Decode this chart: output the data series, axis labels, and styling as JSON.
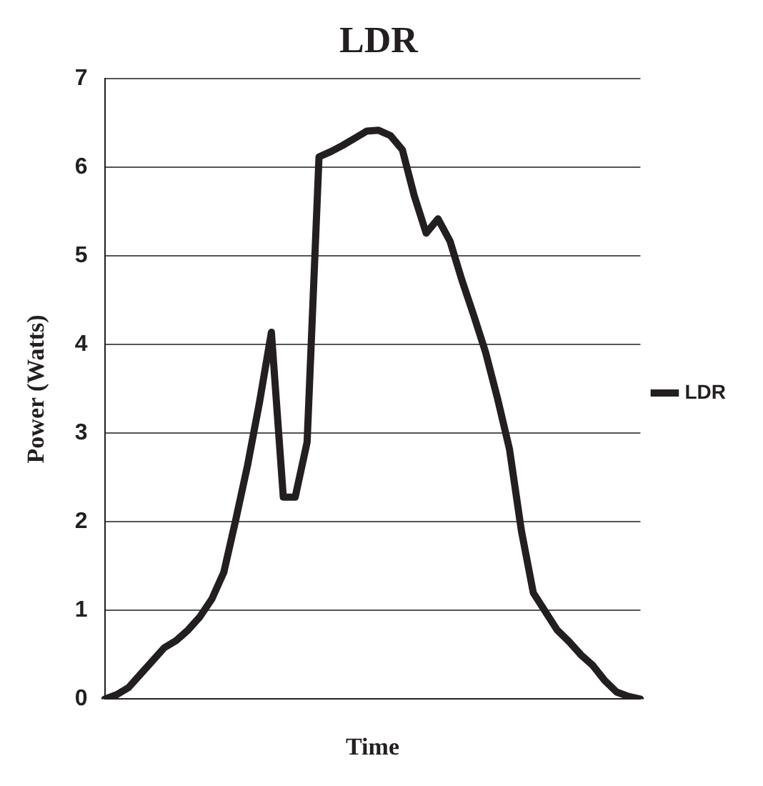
{
  "chart_data": {
    "type": "line",
    "title": "LDR",
    "xlabel": "Time",
    "ylabel": "Power (Watts)",
    "categories": [
      null,
      null,
      null,
      null,
      null,
      null,
      null,
      null,
      null,
      null,
      null,
      null,
      null,
      null,
      null,
      null,
      null,
      null,
      null,
      null,
      null,
      null,
      null,
      null,
      null,
      null,
      null,
      null,
      null,
      null,
      null,
      null,
      null,
      null,
      null,
      null,
      null,
      null,
      null,
      null,
      null,
      null,
      null,
      null,
      null,
      null
    ],
    "series": [
      {
        "name": "LDR",
        "color": "#231f20",
        "values": [
          0,
          0.05,
          0.13,
          0.28,
          0.43,
          0.58,
          0.66,
          0.78,
          0.93,
          1.13,
          1.43,
          2.02,
          2.64,
          3.35,
          4.14,
          2.28,
          2.28,
          2.9,
          6.12,
          6.18,
          6.25,
          6.33,
          6.41,
          6.42,
          6.36,
          6.2,
          5.68,
          5.26,
          5.42,
          5.17,
          4.73,
          4.33,
          3.91,
          3.39,
          2.82,
          1.9,
          1.2,
          0.99,
          0.78,
          0.65,
          0.5,
          0.38,
          0.21,
          0.08,
          0.03,
          0
        ]
      }
    ],
    "ylim": [
      0,
      7
    ],
    "yticks": [
      0,
      1,
      2,
      3,
      4,
      5,
      6,
      7
    ],
    "grid": "y",
    "legend": "right",
    "marker": "none",
    "line_style": "solid"
  }
}
